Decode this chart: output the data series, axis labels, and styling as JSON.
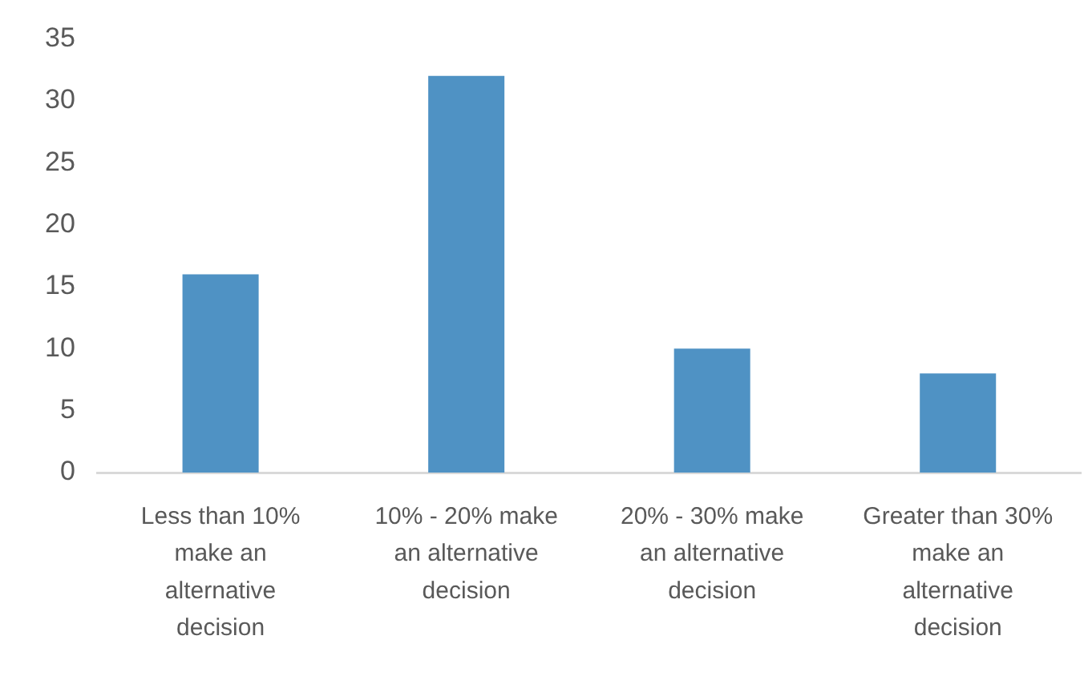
{
  "chart_data": {
    "type": "bar",
    "categories": [
      "Less than 10% make an alternative decision",
      "10% - 20% make an alternative decision",
      "20% - 30% make an alternative decision",
      "Greater than 30% make an alternative decision"
    ],
    "values": [
      16,
      32,
      10,
      8
    ],
    "color": "#4f92c4",
    "ylim": [
      0,
      35
    ],
    "yticks": [
      0,
      5,
      10,
      15,
      20,
      25,
      30,
      35
    ]
  }
}
